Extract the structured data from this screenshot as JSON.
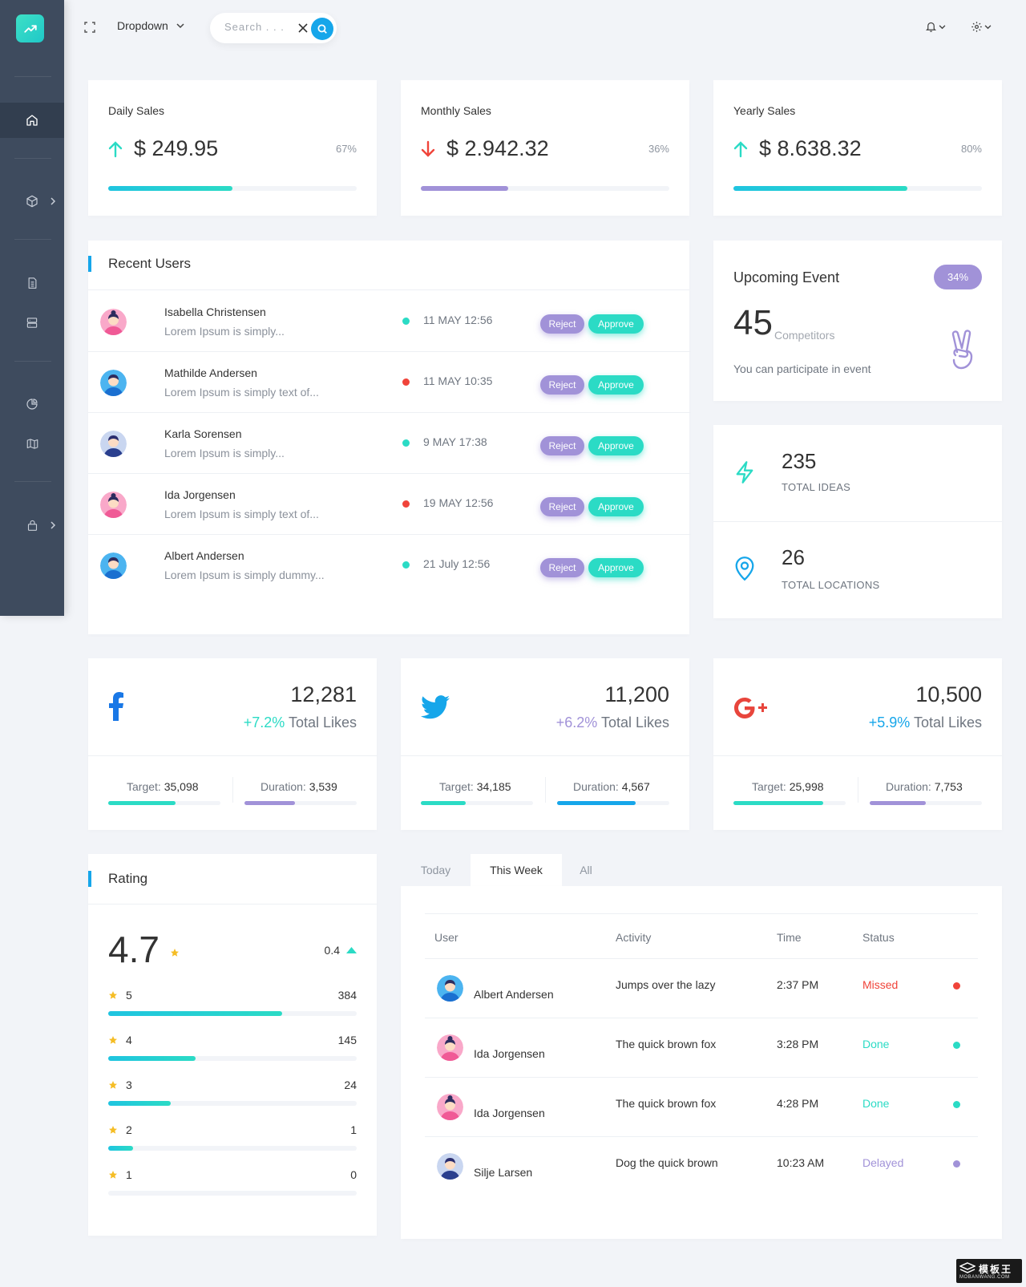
{
  "topbar": {
    "dropdown_label": "Dropdown",
    "search_placeholder": "Search . . ."
  },
  "sales": [
    {
      "title": "Daily Sales",
      "value": "$ 249.95",
      "pct": "67%",
      "progress": 0.5,
      "trend": "up",
      "color": "#2bdbc5"
    },
    {
      "title": "Monthly Sales",
      "value": "$ 2.942.32",
      "pct": "36%",
      "progress": 0.35,
      "trend": "down",
      "color": "#a192d8"
    },
    {
      "title": "Yearly Sales",
      "value": "$ 8.638.32",
      "pct": "80%",
      "progress": 0.7,
      "trend": "up",
      "color": "#2bdbc5"
    }
  ],
  "recent_users": {
    "title": "Recent Users",
    "reject_label": "Reject",
    "approve_label": "Approve",
    "rows": [
      {
        "name": "Isabella Christensen",
        "desc": "Lorem Ipsum is simply...",
        "time": "11 MAY 12:56",
        "dot": "#2bdbc5",
        "avatar": "female-pink"
      },
      {
        "name": "Mathilde Andersen",
        "desc": "Lorem Ipsum is simply text of...",
        "time": "11 MAY 10:35",
        "dot": "#f0443a",
        "avatar": "male-blue"
      },
      {
        "name": "Karla Sorensen",
        "desc": "Lorem Ipsum is simply...",
        "time": "9 MAY 17:38",
        "dot": "#2bdbc5",
        "avatar": "female-dark"
      },
      {
        "name": "Ida Jorgensen",
        "desc": "Lorem Ipsum is simply text of...",
        "time": "19 MAY 12:56",
        "dot": "#f0443a",
        "avatar": "female-pink"
      },
      {
        "name": "Albert Andersen",
        "desc": "Lorem Ipsum is simply dummy...",
        "time": "21 July 12:56",
        "dot": "#2bdbc5",
        "avatar": "male-blue"
      }
    ]
  },
  "event": {
    "title": "Upcoming Event",
    "badge": "34%",
    "number": "45",
    "sub": "Competitors",
    "desc": "You can participate in event"
  },
  "stats": [
    {
      "value": "235",
      "label": "TOTAL IDEAS",
      "icon": "lightning-icon"
    },
    {
      "value": "26",
      "label": "TOTAL LOCATIONS",
      "icon": "map-pin-icon"
    }
  ],
  "social": [
    {
      "network": "facebook",
      "count": "12,281",
      "change": "+7.2%",
      "change_color": "#2bdbc5",
      "label": "Total Likes",
      "target_label": "Target:",
      "target": "35,098",
      "duration_label": "Duration:",
      "duration": "3,539",
      "target_progress": 0.6,
      "duration_progress": 0.45,
      "target_color": "#2bdbc5",
      "duration_color": "#a192d8"
    },
    {
      "network": "twitter",
      "count": "11,200",
      "change": "+6.2%",
      "change_color": "#a192d8",
      "label": "Total Likes",
      "target_label": "Target:",
      "target": "34,185",
      "duration_label": "Duration:",
      "duration": "4,567",
      "target_progress": 0.4,
      "duration_progress": 0.7,
      "target_color": "#2bdbc5",
      "duration_color": "#16a6ea"
    },
    {
      "network": "google-plus",
      "count": "10,500",
      "change": "+5.9%",
      "change_color": "#16a6ea",
      "label": "Total Likes",
      "target_label": "Target:",
      "target": "25,998",
      "duration_label": "Duration:",
      "duration": "7,753",
      "target_progress": 0.8,
      "duration_progress": 0.5,
      "target_color": "#2bdbc5",
      "duration_color": "#a192d8"
    }
  ],
  "rating": {
    "title": "Rating",
    "score": "4.7",
    "delta": "0.4",
    "rows": [
      {
        "stars": "5",
        "count": "384",
        "progress": 0.7
      },
      {
        "stars": "4",
        "count": "145",
        "progress": 0.35
      },
      {
        "stars": "3",
        "count": "24",
        "progress": 0.25
      },
      {
        "stars": "2",
        "count": "1",
        "progress": 0.1
      },
      {
        "stars": "1",
        "count": "0",
        "progress": 0
      }
    ]
  },
  "activity": {
    "tabs": [
      "Today",
      "This Week",
      "All"
    ],
    "active_tab": 1,
    "headers": {
      "user": "User",
      "activity": "Activity",
      "time": "Time",
      "status": "Status"
    },
    "rows": [
      {
        "name": "Albert Andersen",
        "activity": "Jumps over the lazy",
        "time": "2:37 PM",
        "status": "Missed",
        "color": "#f0443a",
        "avatar": "male-blue"
      },
      {
        "name": "Ida Jorgensen",
        "activity": "The quick brown fox",
        "time": "3:28 PM",
        "status": "Done",
        "color": "#2bdbc5",
        "avatar": "female-pink"
      },
      {
        "name": "Ida Jorgensen",
        "activity": "The quick brown fox",
        "time": "4:28 PM",
        "status": "Done",
        "color": "#2bdbc5",
        "avatar": "female-pink"
      },
      {
        "name": "Silje Larsen",
        "activity": "Dog the quick brown",
        "time": "10:23 AM",
        "status": "Delayed",
        "color": "#a192d8",
        "avatar": "female-dark"
      }
    ]
  },
  "watermark": {
    "text": "模板王",
    "sub": "MOBANWANG.COM"
  }
}
